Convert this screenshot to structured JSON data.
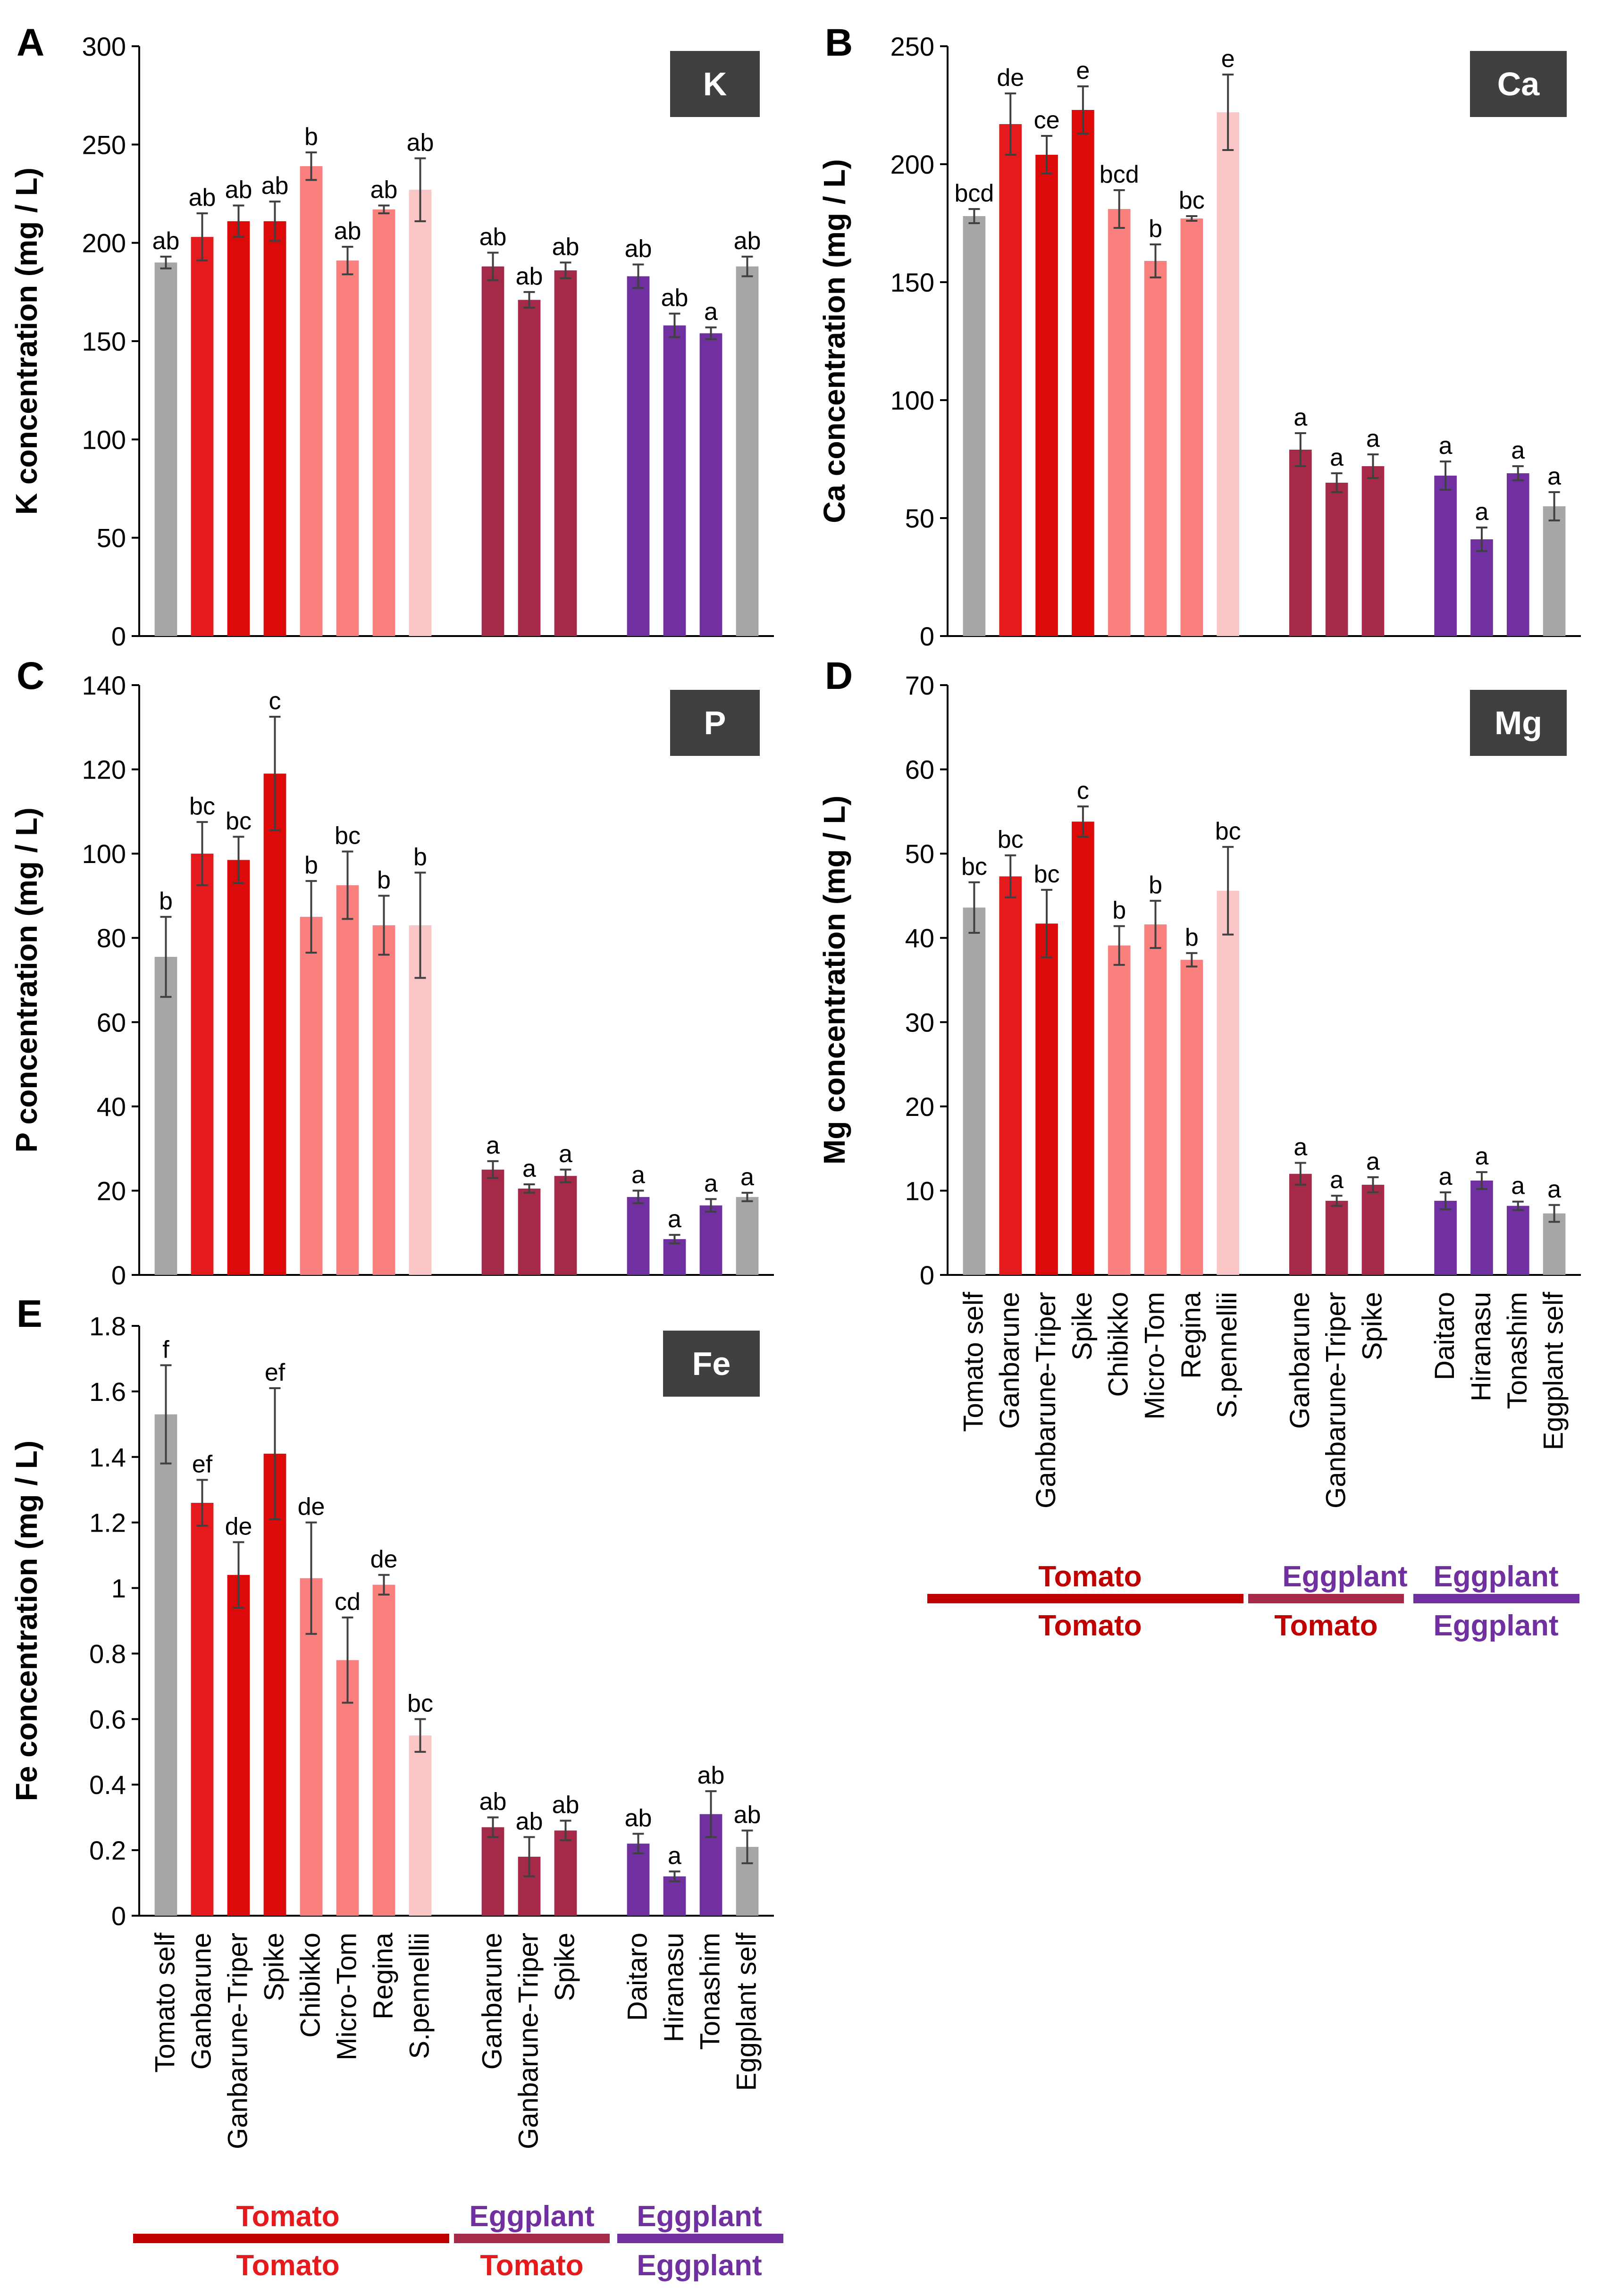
{
  "figure": {
    "group_labels": {
      "tomato_top": "Tomato",
      "tomato_bottom": "Tomato",
      "eggplant_on_tomato_top": "Eggplant",
      "eggplant_on_tomato_bottom": "Tomato",
      "eggplant_top": "Eggplant",
      "eggplant_bottom": "Eggplant"
    },
    "colors": {
      "gray": "#a6a6a6",
      "red": "#e41a1c",
      "red_dark": "#dd0a0a",
      "salmon": "#fa7f7f",
      "pink": "#fbc6c6",
      "maroon": "#a52a4a",
      "purple": "#7030a0",
      "tomato_group": "#c00000",
      "eggplant_group": "#7030a0",
      "mixed_group": "#a52a4a"
    }
  },
  "chart_data": [
    {
      "panel": "A",
      "type": "bar",
      "element": "K",
      "title": "K",
      "ylabel": "K concentration (mg / L)",
      "ylim": [
        0,
        300
      ],
      "yticks": [
        "0",
        "50",
        "100",
        "150",
        "200",
        "250",
        "300"
      ],
      "categories": [
        "Tomato self",
        "Ganbarune",
        "Ganbarune-Triper",
        "Spike",
        "Chibikko",
        "Micro-Tom",
        "Regina",
        "S.pennellii",
        "Ganbarune",
        "Ganbarune-Triper",
        "Spike",
        "Daitaro",
        "Hiranasu",
        "Tonashim",
        "Eggplant self"
      ],
      "values": [
        190,
        203,
        211,
        211,
        239,
        191,
        217,
        227,
        188,
        171,
        186,
        183,
        158,
        154,
        188
      ],
      "errors": [
        3,
        12,
        8,
        10,
        7,
        7,
        2,
        16,
        7,
        4,
        4,
        6,
        6,
        3,
        5
      ],
      "letters": [
        "ab",
        "ab",
        "ab",
        "ab",
        "b",
        "ab",
        "ab",
        "ab",
        "ab",
        "ab",
        "ab",
        "ab",
        "ab",
        "a",
        "ab"
      ],
      "bar_colors": [
        "gray",
        "red",
        "red_dark",
        "red_dark",
        "salmon",
        "salmon",
        "salmon",
        "pink",
        "maroon",
        "maroon",
        "maroon",
        "purple",
        "purple",
        "purple",
        "gray"
      ]
    },
    {
      "panel": "B",
      "type": "bar",
      "element": "Ca",
      "title": "Ca",
      "ylabel": "Ca concentration (mg / L)",
      "ylim": [
        0,
        250
      ],
      "yticks": [
        "0",
        "50",
        "100",
        "150",
        "200",
        "250"
      ],
      "categories": [
        "Tomato self",
        "Ganbarune",
        "Ganbarune-Triper",
        "Spike",
        "Chibikko",
        "Micro-Tom",
        "Regina",
        "S.pennellii",
        "Ganbarune",
        "Ganbarune-Triper",
        "Spike",
        "Daitaro",
        "Hiranasu",
        "Tonashim",
        "Eggplant self"
      ],
      "values": [
        178,
        217,
        204,
        223,
        181,
        159,
        177,
        222,
        79,
        65,
        72,
        68,
        41,
        69,
        55
      ],
      "errors": [
        3,
        13,
        8,
        10,
        8,
        7,
        1,
        16,
        7,
        4,
        5,
        6,
        5,
        3,
        6
      ],
      "letters": [
        "bcd",
        "de",
        "ce",
        "e",
        "bcd",
        "b",
        "bc",
        "e",
        "a",
        "a",
        "a",
        "a",
        "a",
        "a",
        "a"
      ],
      "bar_colors": [
        "gray",
        "red",
        "red_dark",
        "red_dark",
        "salmon",
        "salmon",
        "salmon",
        "pink",
        "maroon",
        "maroon",
        "maroon",
        "purple",
        "purple",
        "purple",
        "gray"
      ]
    },
    {
      "panel": "C",
      "type": "bar",
      "element": "P",
      "title": "P",
      "ylabel": "P concentration (mg / L)",
      "ylim": [
        0,
        140
      ],
      "yticks": [
        "0",
        "20",
        "40",
        "60",
        "80",
        "100",
        "120",
        "140"
      ],
      "categories": [
        "Tomato self",
        "Ganbarune",
        "Ganbarune-Triper",
        "Spike",
        "Chibikko",
        "Micro-Tom",
        "Regina",
        "S.pennellii",
        "Ganbarune",
        "Ganbarune-Triper",
        "Spike",
        "Daitaro",
        "Hiranasu",
        "Tonashim",
        "Eggplant self"
      ],
      "values": [
        75.5,
        100,
        98.5,
        119,
        85,
        92.5,
        83,
        83,
        25,
        20.5,
        23.5,
        18.5,
        8.5,
        16.5,
        18.5
      ],
      "errors": [
        9.5,
        7.5,
        5.5,
        13.5,
        8.5,
        8,
        7,
        12.5,
        2,
        1,
        1.5,
        1.5,
        1,
        1.5,
        1
      ],
      "letters": [
        "b",
        "bc",
        "bc",
        "c",
        "b",
        "bc",
        "b",
        "b",
        "a",
        "a",
        "a",
        "a",
        "a",
        "a",
        "a"
      ],
      "bar_colors": [
        "gray",
        "red",
        "red_dark",
        "red_dark",
        "salmon",
        "salmon",
        "salmon",
        "pink",
        "maroon",
        "maroon",
        "maroon",
        "purple",
        "purple",
        "purple",
        "gray"
      ]
    },
    {
      "panel": "D",
      "type": "bar",
      "element": "Mg",
      "title": "Mg",
      "ylabel": "Mg concentration (mg / L)",
      "ylim": [
        0,
        70
      ],
      "yticks": [
        "0",
        "10",
        "20",
        "30",
        "40",
        "50",
        "60",
        "70"
      ],
      "categories": [
        "Tomato self",
        "Ganbarune",
        "Ganbarune-Triper",
        "Spike",
        "Chibikko",
        "Micro-Tom",
        "Regina",
        "S.pennellii",
        "Ganbarune",
        "Ganbarune-Triper",
        "Spike",
        "Daitaro",
        "Hiranasu",
        "Tonashim",
        "Eggplant self"
      ],
      "values": [
        43.6,
        47.3,
        41.7,
        53.8,
        39.1,
        41.6,
        37.4,
        45.6,
        12,
        8.8,
        10.7,
        8.8,
        11.2,
        8.2,
        7.3
      ],
      "errors": [
        3,
        2.5,
        4,
        1.8,
        2.3,
        2.8,
        0.8,
        5.2,
        1.3,
        0.6,
        0.9,
        1,
        1,
        0.5,
        1
      ],
      "letters": [
        "bc",
        "bc",
        "bc",
        "c",
        "b",
        "b",
        "b",
        "bc",
        "a",
        "a",
        "a",
        "a",
        "a",
        "a",
        "a"
      ],
      "bar_colors": [
        "gray",
        "red",
        "red_dark",
        "red_dark",
        "salmon",
        "salmon",
        "salmon",
        "pink",
        "maroon",
        "maroon",
        "maroon",
        "purple",
        "purple",
        "purple",
        "gray"
      ]
    },
    {
      "panel": "E",
      "type": "bar",
      "element": "Fe",
      "title": "Fe",
      "ylabel": "Fe concentration (mg / L)",
      "ylim": [
        0,
        1.8
      ],
      "yticks": [
        "0",
        "0.2",
        "0.4",
        "0.6",
        "0.8",
        "1",
        "1.2",
        "1.4",
        "1.6",
        "1.8"
      ],
      "categories": [
        "Tomato self",
        "Ganbarune",
        "Ganbarune-Triper",
        "Spike",
        "Chibikko",
        "Micro-Tom",
        "Regina",
        "S.pennellii",
        "Ganbarune",
        "Ganbarune-Triper",
        "Spike",
        "Daitaro",
        "Hiranasu",
        "Tonashim",
        "Eggplant self"
      ],
      "values": [
        1.53,
        1.26,
        1.04,
        1.41,
        1.03,
        0.78,
        1.01,
        0.55,
        0.27,
        0.18,
        0.26,
        0.22,
        0.12,
        0.31,
        0.21
      ],
      "errors": [
        0.15,
        0.07,
        0.1,
        0.2,
        0.17,
        0.13,
        0.03,
        0.05,
        0.03,
        0.06,
        0.03,
        0.03,
        0.015,
        0.07,
        0.05
      ],
      "letters": [
        "f",
        "ef",
        "de",
        "ef",
        "de",
        "cd",
        "de",
        "bc",
        "ab",
        "ab",
        "ab",
        "ab",
        "a",
        "ab",
        "ab"
      ],
      "bar_colors": [
        "gray",
        "red",
        "red_dark",
        "red_dark",
        "salmon",
        "salmon",
        "salmon",
        "pink",
        "maroon",
        "maroon",
        "maroon",
        "purple",
        "purple",
        "purple",
        "gray"
      ]
    }
  ]
}
